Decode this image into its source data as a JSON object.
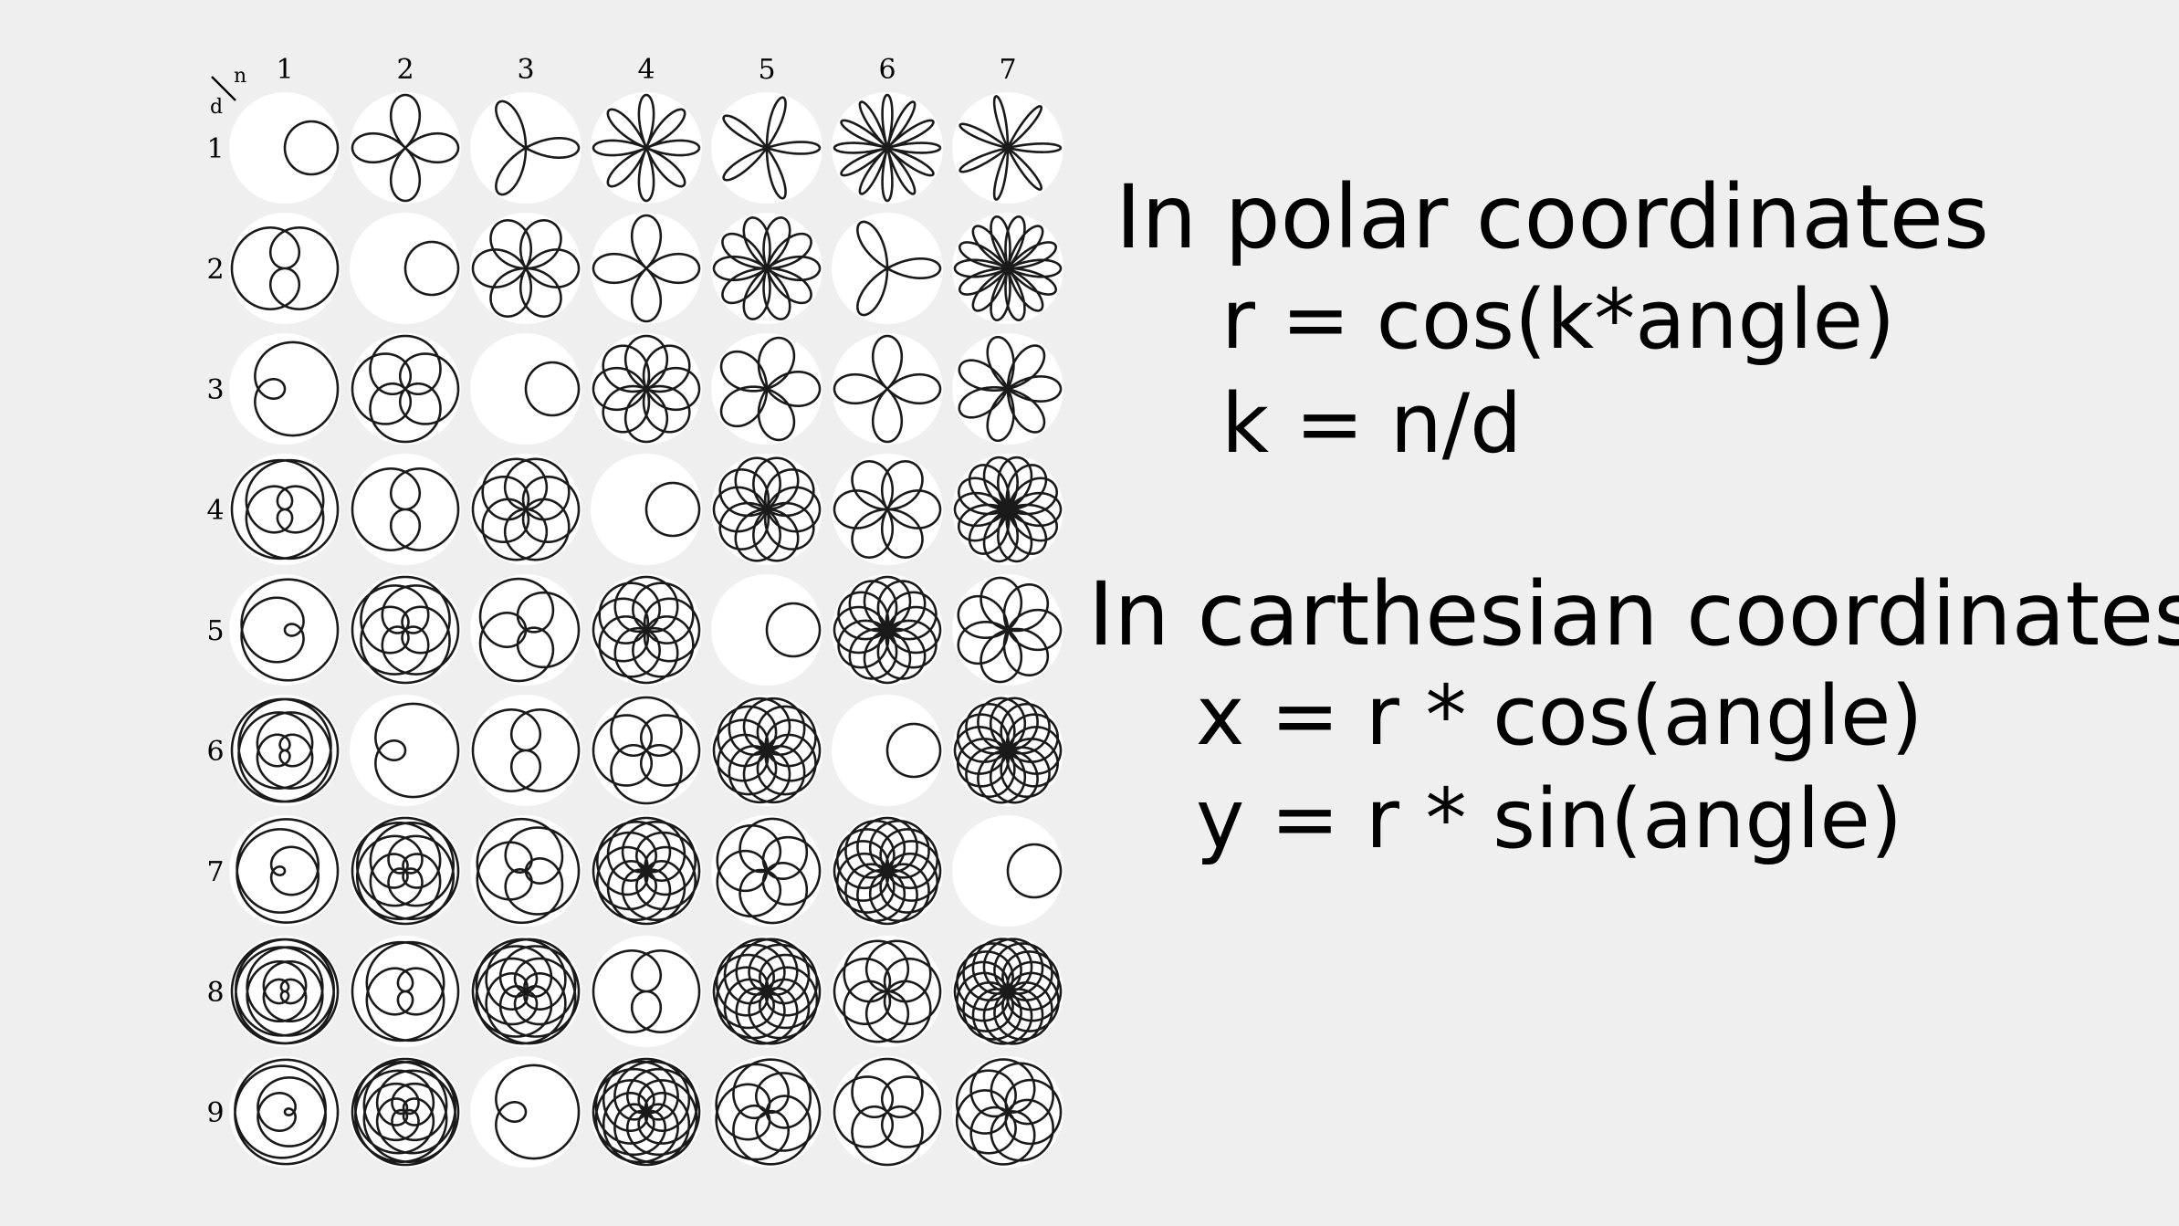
{
  "grid": {
    "corner_n": "n",
    "corner_d": "d",
    "n_labels": [
      "1",
      "2",
      "3",
      "4",
      "5",
      "6",
      "7"
    ],
    "d_labels": [
      "1",
      "2",
      "3",
      "4",
      "5",
      "6",
      "7",
      "8",
      "9"
    ]
  },
  "polar": {
    "heading": "In polar coordinates",
    "eq1": "r = cos(k*angle)",
    "eq2": "k = n/d"
  },
  "cartesian": {
    "heading": "In carthesian coordinates",
    "eq1": "x = r * cos(angle)",
    "eq2": "y = r * sin(angle)"
  },
  "colors": {
    "background": "#efefef",
    "cell_background": "#ffffff",
    "stroke": "#1a1a1a"
  }
}
